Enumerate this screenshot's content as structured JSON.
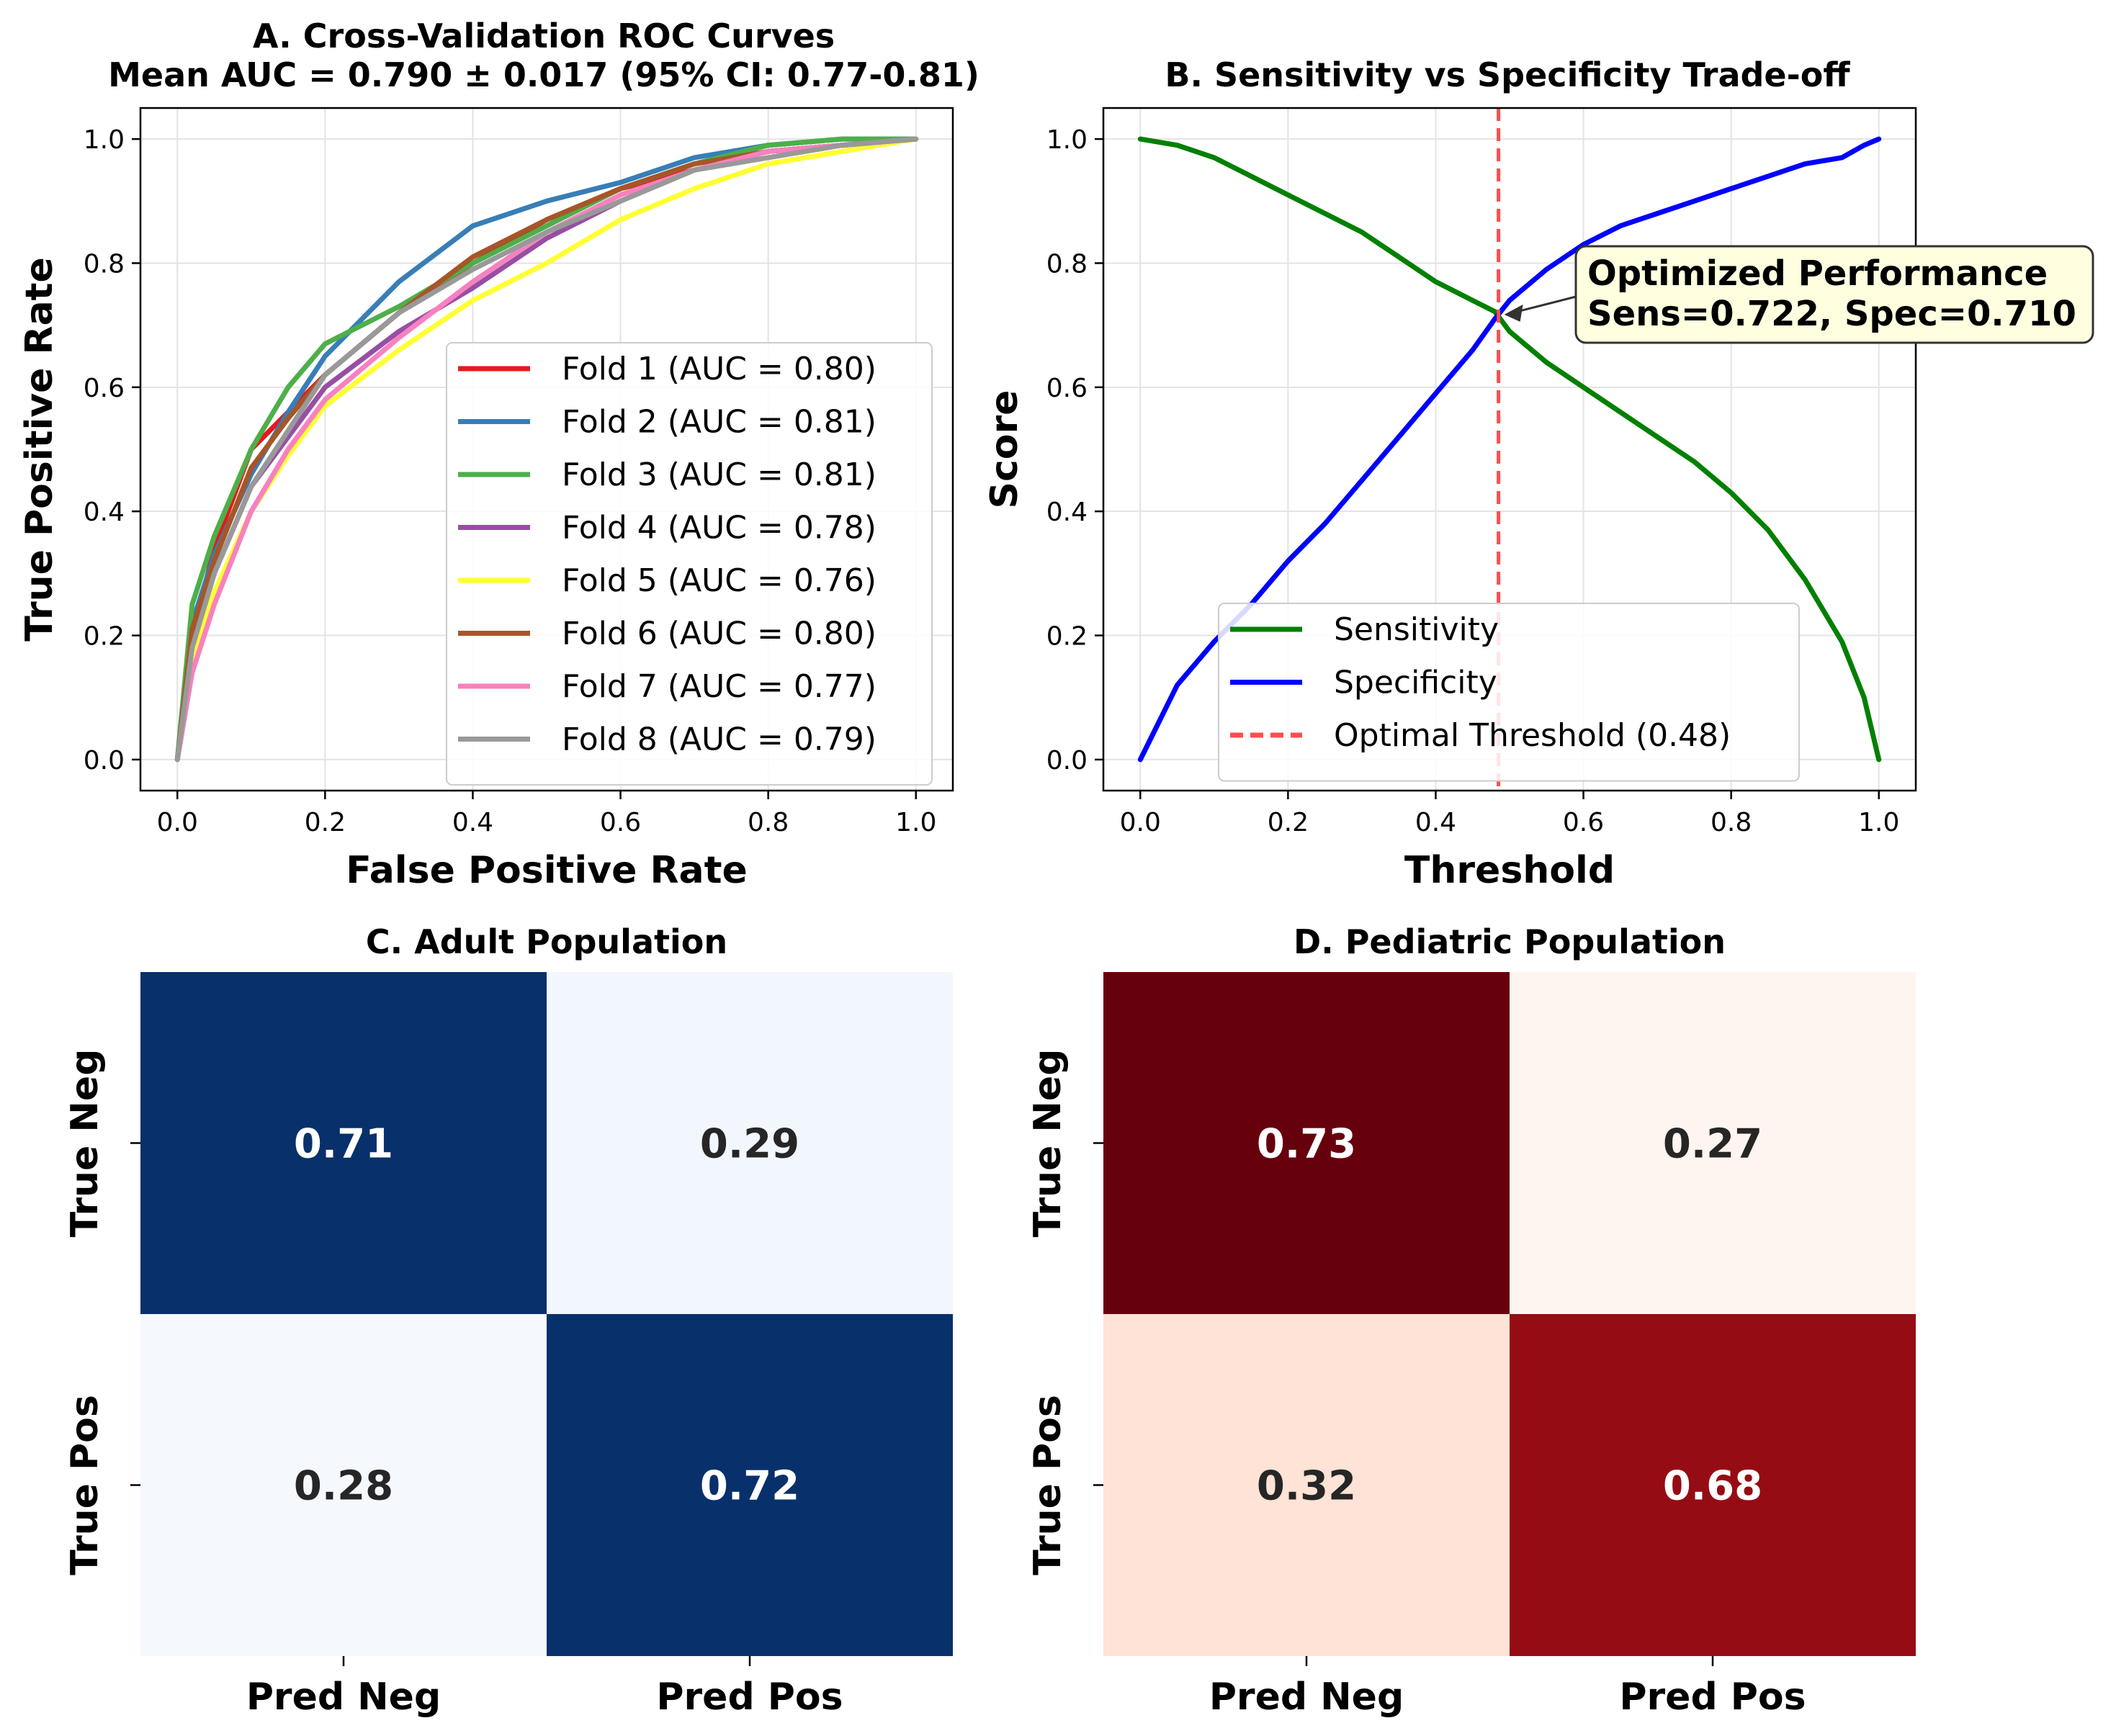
{
  "chart_data": [
    {
      "panel": "A",
      "type": "line",
      "title": "A. Cross-Validation ROC Curves",
      "subtitle": "Mean AUC = 0.790 ± 0.017 (95% CI: 0.77-0.81)",
      "xlabel": "False Positive Rate",
      "ylabel": "True Positive Rate",
      "xlim": [
        -0.05,
        1.05
      ],
      "ylim": [
        -0.05,
        1.05
      ],
      "xticks": [
        "0.0",
        "0.2",
        "0.4",
        "0.6",
        "0.8",
        "1.0"
      ],
      "yticks": [
        "0.0",
        "0.2",
        "0.4",
        "0.6",
        "0.8",
        "1.0"
      ],
      "grid": true,
      "legend": "lower-right",
      "x": [
        0.0,
        0.02,
        0.05,
        0.1,
        0.15,
        0.2,
        0.3,
        0.4,
        0.5,
        0.6,
        0.7,
        0.8,
        0.9,
        1.0
      ],
      "series": [
        {
          "name": "Fold 1 (AUC = 0.80)",
          "color": "#e41a1c",
          "values": [
            0.0,
            0.2,
            0.34,
            0.5,
            0.56,
            0.62,
            0.72,
            0.8,
            0.87,
            0.92,
            0.95,
            0.98,
            0.99,
            1.0
          ]
        },
        {
          "name": "Fold 2 (AUC = 0.81)",
          "color": "#377eb8",
          "values": [
            0.0,
            0.22,
            0.33,
            0.46,
            0.56,
            0.65,
            0.77,
            0.86,
            0.9,
            0.93,
            0.97,
            0.99,
            1.0,
            1.0
          ]
        },
        {
          "name": "Fold 3 (AUC = 0.81)",
          "color": "#4daf4a",
          "values": [
            0.0,
            0.25,
            0.36,
            0.5,
            0.6,
            0.67,
            0.73,
            0.8,
            0.86,
            0.92,
            0.96,
            0.99,
            1.0,
            1.0
          ]
        },
        {
          "name": "Fold 4 (AUC = 0.78)",
          "color": "#984ea3",
          "values": [
            0.0,
            0.18,
            0.3,
            0.44,
            0.52,
            0.6,
            0.69,
            0.76,
            0.84,
            0.9,
            0.95,
            0.98,
            0.99,
            1.0
          ]
        },
        {
          "name": "Fold 5 (AUC = 0.76)",
          "color": "#ffff33",
          "values": [
            0.0,
            0.16,
            0.27,
            0.4,
            0.49,
            0.57,
            0.66,
            0.74,
            0.8,
            0.87,
            0.92,
            0.96,
            0.98,
            1.0
          ]
        },
        {
          "name": "Fold 6 (AUC = 0.80)",
          "color": "#a65628",
          "values": [
            0.0,
            0.21,
            0.32,
            0.47,
            0.55,
            0.62,
            0.72,
            0.81,
            0.87,
            0.92,
            0.96,
            0.98,
            0.99,
            1.0
          ]
        },
        {
          "name": "Fold 7 (AUC = 0.77)",
          "color": "#f781bf",
          "values": [
            0.0,
            0.14,
            0.25,
            0.4,
            0.5,
            0.58,
            0.68,
            0.77,
            0.85,
            0.91,
            0.95,
            0.98,
            0.99,
            1.0
          ]
        },
        {
          "name": "Fold 8 (AUC = 0.79)",
          "color": "#999999",
          "values": [
            0.0,
            0.18,
            0.3,
            0.44,
            0.53,
            0.62,
            0.72,
            0.79,
            0.85,
            0.9,
            0.95,
            0.97,
            0.99,
            1.0
          ]
        }
      ]
    },
    {
      "panel": "B",
      "type": "line",
      "title": "B. Sensitivity vs Specificity Trade-off",
      "xlabel": "Threshold",
      "ylabel": "Score",
      "xlim": [
        -0.05,
        1.05
      ],
      "ylim": [
        -0.05,
        1.05
      ],
      "xticks": [
        "0.0",
        "0.2",
        "0.4",
        "0.6",
        "0.8",
        "1.0"
      ],
      "yticks": [
        "0.0",
        "0.2",
        "0.4",
        "0.6",
        "0.8",
        "1.0"
      ],
      "grid": true,
      "legend": "lower-center",
      "x": [
        0.0,
        0.05,
        0.1,
        0.15,
        0.2,
        0.25,
        0.3,
        0.35,
        0.4,
        0.45,
        0.48,
        0.5,
        0.55,
        0.6,
        0.65,
        0.7,
        0.75,
        0.8,
        0.85,
        0.9,
        0.95,
        0.98,
        1.0
      ],
      "series": [
        {
          "name": "Sensitivity",
          "color": "#008000",
          "values": [
            1.0,
            0.99,
            0.97,
            0.94,
            0.91,
            0.88,
            0.85,
            0.81,
            0.77,
            0.74,
            0.722,
            0.69,
            0.64,
            0.6,
            0.56,
            0.52,
            0.48,
            0.43,
            0.37,
            0.29,
            0.19,
            0.1,
            0.0
          ]
        },
        {
          "name": "Specificity",
          "color": "#0000ff",
          "values": [
            0.0,
            0.12,
            0.19,
            0.25,
            0.32,
            0.38,
            0.45,
            0.52,
            0.59,
            0.66,
            0.71,
            0.74,
            0.79,
            0.83,
            0.86,
            0.88,
            0.9,
            0.92,
            0.94,
            0.96,
            0.97,
            0.99,
            1.0
          ]
        }
      ],
      "threshold_line": {
        "name": "Optimal Threshold (0.48)",
        "x": 0.485,
        "color": "#ff4d4d"
      },
      "annotation": {
        "line1": "Optimized Performance",
        "line2": "Sens=0.722, Spec=0.710",
        "x": 0.485,
        "y": 0.716
      }
    },
    {
      "panel": "C",
      "type": "heatmap",
      "title": "C. Adult Population",
      "colormap": "Blues",
      "xticks": [
        "Pred Neg",
        "Pred Pos"
      ],
      "yticks": [
        "True Neg",
        "True Pos"
      ],
      "values": [
        [
          0.71,
          0.29
        ],
        [
          0.28,
          0.72
        ]
      ],
      "labels": [
        [
          "0.71",
          "0.29"
        ],
        [
          "0.28",
          "0.72"
        ]
      ],
      "colors": [
        [
          "#08306b",
          "#f2f7fd"
        ],
        [
          "#f5f9fe",
          "#08306b"
        ]
      ],
      "text_colors": [
        [
          "#ffffff",
          "#262626"
        ],
        [
          "#262626",
          "#ffffff"
        ]
      ]
    },
    {
      "panel": "D",
      "type": "heatmap",
      "title": "D. Pediatric Population",
      "colormap": "Reds",
      "xticks": [
        "Pred Neg",
        "Pred Pos"
      ],
      "yticks": [
        "True Neg",
        "True Pos"
      ],
      "values": [
        [
          0.73,
          0.27
        ],
        [
          0.32,
          0.68
        ]
      ],
      "labels": [
        [
          "0.73",
          "0.27"
        ],
        [
          "0.32",
          "0.68"
        ]
      ],
      "colors": [
        [
          "#67000d",
          "#fff5f0"
        ],
        [
          "#fee3d6",
          "#960c14"
        ]
      ],
      "text_colors": [
        [
          "#ffffff",
          "#262626"
        ],
        [
          "#262626",
          "#ffffff"
        ]
      ]
    }
  ]
}
